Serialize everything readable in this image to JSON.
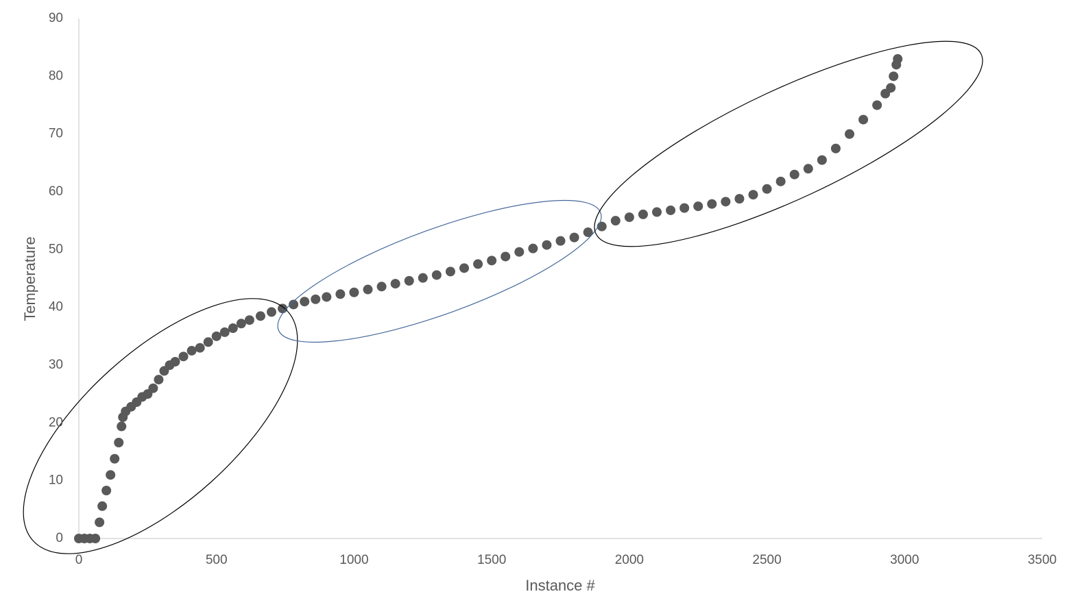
{
  "chart_data": {
    "type": "scatter",
    "x_label": "Instance #",
    "y_label": "Temperature",
    "xlim": [
      0,
      3500
    ],
    "xticks": [
      0,
      500,
      1000,
      1500,
      2000,
      2500,
      3000,
      3500
    ],
    "ylim": [
      0,
      90
    ],
    "yticks": [
      0,
      10,
      20,
      30,
      40,
      50,
      60,
      70,
      80,
      90
    ],
    "grid": false,
    "series": [
      {
        "color": "#595959",
        "x": [
          0,
          20,
          40,
          60,
          75,
          85,
          100,
          115,
          130,
          145,
          155,
          160,
          170,
          190,
          210,
          230,
          250,
          270,
          290,
          310,
          330,
          350,
          380,
          410,
          440,
          470,
          500,
          530,
          560,
          590,
          620,
          660,
          700,
          740,
          780,
          820,
          860,
          900,
          950,
          1000,
          1050,
          1100,
          1150,
          1200,
          1250,
          1300,
          1350,
          1400,
          1450,
          1500,
          1550,
          1600,
          1650,
          1700,
          1750,
          1800,
          1850,
          1900,
          1950,
          2000,
          2050,
          2100,
          2150,
          2200,
          2250,
          2300,
          2350,
          2400,
          2450,
          2500,
          2550,
          2600,
          2650,
          2700,
          2750,
          2800,
          2850,
          2900,
          2930,
          2950,
          2960,
          2970,
          2975
        ],
        "values": [
          0,
          0,
          0,
          0,
          2.8,
          5.6,
          8.3,
          11,
          13.8,
          16.6,
          19.4,
          21,
          22,
          22.8,
          23.6,
          24.5,
          25,
          26,
          27.5,
          29,
          30,
          30.6,
          31.5,
          32.5,
          33,
          34,
          35,
          35.7,
          36.4,
          37.2,
          37.8,
          38.5,
          39.2,
          39.8,
          40.5,
          41,
          41.4,
          41.8,
          42.3,
          42.6,
          43.1,
          43.6,
          44.1,
          44.6,
          45.1,
          45.6,
          46.2,
          46.8,
          47.5,
          48.1,
          48.8,
          49.6,
          50.2,
          50.8,
          51.5,
          52.1,
          53,
          54,
          55,
          55.6,
          56.1,
          56.5,
          56.8,
          57.2,
          57.5,
          57.9,
          58.3,
          58.8,
          59.5,
          60.5,
          61.8,
          63,
          64,
          65.5,
          67.5,
          70,
          72.5,
          75,
          77,
          78,
          80,
          82,
          83
        ]
      }
    ]
  }
}
